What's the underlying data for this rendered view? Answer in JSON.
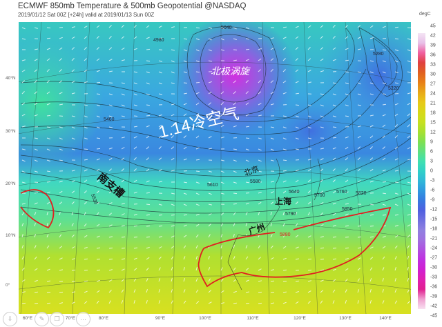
{
  "header": {
    "title": "ECMWF 850mb Temperature & 500mb Geopotential @NASDAQ",
    "subtitle": "2019/01/12 Sat 00Z [+24h] valid at 2019/01/13 Sun 00Z"
  },
  "colorbar": {
    "unit": "degC",
    "ticks": [
      "45",
      "42",
      "39",
      "36",
      "33",
      "30",
      "27",
      "24",
      "21",
      "18",
      "15",
      "12",
      "9",
      "6",
      "3",
      "0",
      "-3",
      "-6",
      "-9",
      "-12",
      "-15",
      "-18",
      "-21",
      "-24",
      "-27",
      "-30",
      "-33",
      "-36",
      "-39",
      "-42",
      "-45"
    ],
    "colors_top_to_bottom": [
      "#f4e4f4",
      "#e8c0e8",
      "#f060a0",
      "#e04040",
      "#e06020",
      "#e88018",
      "#e8a818",
      "#e8c818",
      "#d8d818",
      "#c8e020",
      "#a8e030",
      "#80e050",
      "#60e080",
      "#40e0b0",
      "#30d0c8",
      "#30b8d8",
      "#3098e0",
      "#3878e0",
      "#5060e0",
      "#7070e0",
      "#9080e0",
      "#a070e0",
      "#b050e0",
      "#c030e0",
      "#d020d0",
      "#e020b0",
      "#e02090",
      "#f0a0d0",
      "#f8e0f0"
    ]
  },
  "axes": {
    "lon_labels": [
      "60°E",
      "70°E",
      "80°E",
      "90°E",
      "100°E",
      "110°E",
      "120°E",
      "130°E",
      "140°E"
    ],
    "lat_labels": [
      "40°N",
      "30°N",
      "20°N",
      "10°N",
      "0°"
    ]
  },
  "annotations": {
    "polar_vortex": "北极涡旋",
    "cold_air": "1.14冷空气",
    "trough": "南支槽",
    "beijing": "北京",
    "shanghai": "上海",
    "guangzhou": "广州"
  },
  "contour_labels": [
    "5040",
    "4980",
    "5460",
    "5530",
    "5610",
    "5580",
    "5640",
    "5700",
    "5760",
    "5820",
    "5850",
    "5790",
    "5880",
    "5280",
    "5220"
  ],
  "highlight_color": "#e02020",
  "toolbar": {
    "icons": [
      "download-icon",
      "pen-icon",
      "copy-icon",
      "more-icon"
    ],
    "more_label": "···"
  }
}
